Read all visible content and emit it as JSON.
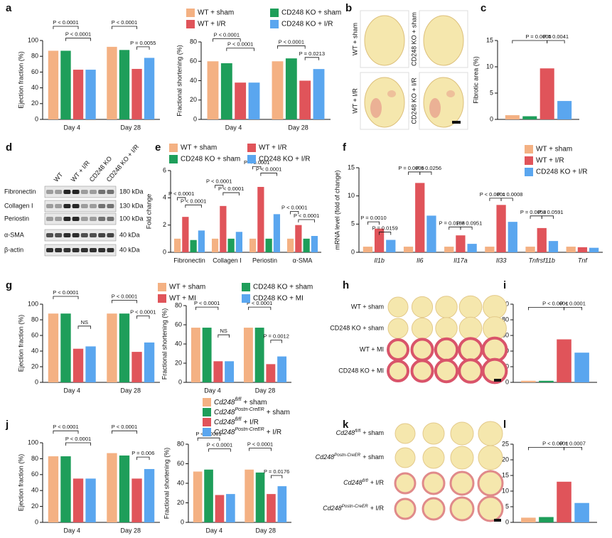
{
  "panel_letters": [
    "a",
    "b",
    "c",
    "d",
    "e",
    "f",
    "g",
    "h",
    "i",
    "j",
    "k",
    "l"
  ],
  "histology_b": [
    "WT + sham",
    "CD248 KO + sham",
    "WT + I/R",
    "CD248 KO + I/R"
  ],
  "blot_d": {
    "lanes": [
      "WT",
      "WT + I/R",
      "CD248 KO",
      "CD248 KO + I/R"
    ],
    "rows": [
      {
        "protein": "Fibronectin",
        "size": "180 kDa"
      },
      {
        "protein": "Collagen I",
        "size": "130 kDa"
      },
      {
        "protein": "Periostin",
        "size": "100 kDa"
      },
      {
        "protein": "α-SMA",
        "size": "40 kDa"
      },
      {
        "protein": "β-actin",
        "size": "40 kDa"
      }
    ]
  },
  "histology_h": [
    "WT + sham",
    "CD248 KO + sham",
    "WT + MI",
    "CD248 KO + MI"
  ],
  "histology_k": [
    [
      "Cd248",
      "fl/fl",
      "+ sham"
    ],
    [
      "Cd248",
      "Postn-CreER",
      "+ sham"
    ],
    [
      "Cd248",
      "fl/fl",
      "+ I/R"
    ],
    [
      "Cd248",
      "Postn-CreER",
      "+ I/R"
    ]
  ],
  "chart_data": [
    {
      "type": "bar",
      "ylabel": "Ejection fraction (%)",
      "categories": [
        "Day 4",
        "Day 28"
      ],
      "series": [
        {
          "color": "#f4b183",
          "values": [
            87,
            92
          ]
        },
        {
          "color": "#1e9e5a",
          "values": [
            87,
            88
          ]
        },
        {
          "color": "#e0545a",
          "values": [
            63,
            64
          ]
        },
        {
          "color": "#5aa6ef",
          "values": [
            63,
            78
          ]
        }
      ],
      "ylim": [
        0,
        100
      ],
      "yticks": [
        0,
        20,
        40,
        60,
        80,
        100
      ],
      "annotations": [
        "P < 0.0001",
        "P < 0.0001",
        "P < 0.0001",
        "P = 0.0055"
      ]
    },
    {
      "type": "bar",
      "ylabel": "Fractional shortening (%)",
      "categories": [
        "Day 4",
        "Day 28"
      ],
      "series": [
        {
          "name": "WT + sham",
          "color": "#f4b183",
          "values": [
            60,
            60
          ]
        },
        {
          "name": "CD248 KO + sham",
          "color": "#1e9e5a",
          "values": [
            58,
            63
          ]
        },
        {
          "name": "WT + I/R",
          "color": "#e0545a",
          "values": [
            38,
            40
          ]
        },
        {
          "name": "CD248 KO + I/R",
          "color": "#5aa6ef",
          "values": [
            38,
            52
          ]
        }
      ],
      "ylim": [
        0,
        80
      ],
      "yticks": [
        0,
        20,
        40,
        60,
        80
      ],
      "annotations": [
        "P < 0.0001",
        "P < 0.0001",
        "P < 0.0001",
        "P = 0.0213"
      ]
    },
    {
      "type": "bar",
      "ylabel": "Fibrotic area (%)",
      "series": [
        {
          "color": "#f4b183",
          "values": [
            0.8
          ]
        },
        {
          "color": "#1e9e5a",
          "values": [
            0.6
          ]
        },
        {
          "color": "#e0545a",
          "values": [
            9.7
          ]
        },
        {
          "color": "#5aa6ef",
          "values": [
            3.5
          ]
        }
      ],
      "ylim": [
        0,
        15
      ],
      "yticks": [
        0,
        5,
        10,
        15
      ],
      "annotations": [
        "P = 0.0005",
        "P = 0.0041"
      ]
    },
    {
      "type": "bar",
      "ylabel": "Fold change",
      "categories": [
        "Fibronectin",
        "Collagen I",
        "Periostin",
        "α-SMA"
      ],
      "series": [
        {
          "name": "WT + sham",
          "color": "#f4b183",
          "values": [
            1.0,
            1.0,
            1.0,
            1.0
          ]
        },
        {
          "name": "WT + I/R",
          "color": "#e0545a",
          "values": [
            2.6,
            3.4,
            4.8,
            2.0
          ]
        },
        {
          "name": "CD248 KO + sham",
          "color": "#1e9e5a",
          "values": [
            0.9,
            1.0,
            1.0,
            1.0
          ]
        },
        {
          "name": "CD248 KO + I/R",
          "color": "#5aa6ef",
          "values": [
            1.6,
            1.5,
            2.8,
            1.2
          ]
        }
      ],
      "ylim": [
        0,
        6
      ],
      "yticks": [
        0,
        2,
        4,
        6
      ],
      "annotations": [
        "P < 0.0001",
        "P < 0.0001",
        "P < 0.0001",
        "P < 0.0001",
        "P < 0.0001",
        "P < 0.0001",
        "P < 0.0001",
        "P < 0.0001"
      ]
    },
    {
      "type": "bar",
      "ylabel": "mRNA level (fold of change)",
      "categories": [
        "Il1b",
        "Il6",
        "Il17a",
        "Il33",
        "Tnfrsf11b",
        "Tnf"
      ],
      "italic_categories": true,
      "series": [
        {
          "name": "WT + sham",
          "color": "#f4b183",
          "values": [
            1,
            1,
            1,
            1,
            1,
            1
          ]
        },
        {
          "name": "WT + I/R",
          "color": "#e0545a",
          "values": [
            4.2,
            12.3,
            3.0,
            8.4,
            4.3,
            0.9
          ]
        },
        {
          "name": "CD248 KO + I/R",
          "color": "#5aa6ef",
          "values": [
            2.2,
            6.5,
            1.5,
            5.4,
            2.0,
            0.8
          ]
        }
      ],
      "ylim": [
        0,
        15
      ],
      "yticks": [
        0,
        5,
        10,
        15
      ],
      "annotations": [
        "P = 0.0010",
        "P = 0.0159",
        "P = 0.0005",
        "P = 0.0256",
        "P = 0.0188",
        "P = 0.0951",
        "P < 0.0001",
        "P = 0.0008",
        "P = 0.0053",
        "P = 0.0591"
      ]
    },
    {
      "type": "bar",
      "ylabel": "Ejection fraction (%)",
      "categories": [
        "Day 4",
        "Day 28"
      ],
      "series": [
        {
          "color": "#f4b183",
          "values": [
            88,
            88
          ]
        },
        {
          "color": "#1e9e5a",
          "values": [
            88,
            88
          ]
        },
        {
          "color": "#e0545a",
          "values": [
            43,
            39
          ]
        },
        {
          "color": "#5aa6ef",
          "values": [
            46,
            51
          ]
        }
      ],
      "ylim": [
        0,
        100
      ],
      "yticks": [
        0,
        20,
        40,
        60,
        80,
        100
      ],
      "annotations": [
        "P < 0.0001",
        "NS",
        "P < 0.0001",
        "P < 0.0001"
      ]
    },
    {
      "type": "bar",
      "ylabel": "Fractional shortening (%)",
      "categories": [
        "Day 4",
        "Day 28"
      ],
      "series": [
        {
          "name": "WT + sham",
          "color": "#f4b183",
          "values": [
            57,
            57
          ]
        },
        {
          "name": "CD248 KO + sham",
          "color": "#1e9e5a",
          "values": [
            57,
            57
          ]
        },
        {
          "name": "WT + MI",
          "color": "#e0545a",
          "values": [
            22,
            19
          ]
        },
        {
          "name": "CD248 KO + MI",
          "color": "#5aa6ef",
          "values": [
            22,
            27
          ]
        }
      ],
      "ylim": [
        0,
        80
      ],
      "yticks": [
        0,
        20,
        40,
        60,
        80
      ],
      "annotations": [
        "P < 0.0001",
        "NS",
        "P < 0.0001",
        "P = 0.0012"
      ]
    },
    {
      "type": "bar",
      "ylabel": "Fibrotic area (%)",
      "series": [
        {
          "color": "#f4b183",
          "values": [
            2
          ]
        },
        {
          "color": "#1e9e5a",
          "values": [
            2
          ]
        },
        {
          "color": "#e0545a",
          "values": [
            55
          ]
        },
        {
          "color": "#5aa6ef",
          "values": [
            38
          ]
        }
      ],
      "ylim": [
        0,
        100
      ],
      "yticks": [
        0,
        20,
        40,
        60,
        80,
        100
      ],
      "annotations": [
        "P < 0.0001",
        "P < 0.0001"
      ]
    },
    {
      "type": "bar",
      "ylabel": "Ejection fraction (%)",
      "categories": [
        "Day 4",
        "Day 28"
      ],
      "series": [
        {
          "color": "#f4b183",
          "values": [
            83,
            87
          ]
        },
        {
          "color": "#1e9e5a",
          "values": [
            83,
            84
          ]
        },
        {
          "color": "#e0545a",
          "values": [
            55,
            55
          ]
        },
        {
          "color": "#5aa6ef",
          "values": [
            55,
            67
          ]
        }
      ],
      "ylim": [
        0,
        100
      ],
      "yticks": [
        0,
        20,
        40,
        60,
        80,
        100
      ],
      "annotations": [
        "P < 0.0001",
        "P < 0.0001",
        "P < 0.0001",
        "P = 0.006"
      ]
    },
    {
      "type": "bar",
      "ylabel": "Fractional shortening (%)",
      "categories": [
        "Day 4",
        "Day 28"
      ],
      "series": [
        {
          "name": [
            "Cd248",
            "fl/fl",
            "+ sham"
          ],
          "color": "#f4b183",
          "values": [
            52,
            54
          ]
        },
        {
          "name": [
            "Cd248",
            "Postn-CreER",
            "+ sham"
          ],
          "color": "#1e9e5a",
          "values": [
            54,
            51
          ]
        },
        {
          "name": [
            "Cd248",
            "fl/fl",
            "+ I/R"
          ],
          "color": "#e0545a",
          "values": [
            28,
            29
          ]
        },
        {
          "name": [
            "Cd248",
            "Postn-CreER",
            "+ I/R"
          ],
          "color": "#5aa6ef",
          "values": [
            29,
            37
          ]
        }
      ],
      "ylim": [
        0,
        80
      ],
      "yticks": [
        0,
        20,
        40,
        60,
        80
      ],
      "annotations": [
        "P < 0.0001",
        "P < 0.0001",
        "P < 0.0001",
        "P = 0.0176"
      ]
    },
    {
      "type": "bar",
      "ylabel": "Fibrotic area (%)",
      "series": [
        {
          "color": "#f4b183",
          "values": [
            1.5
          ]
        },
        {
          "color": "#1e9e5a",
          "values": [
            1.7
          ]
        },
        {
          "color": "#e0545a",
          "values": [
            13
          ]
        },
        {
          "color": "#5aa6ef",
          "values": [
            6.2
          ]
        }
      ],
      "ylim": [
        0,
        25
      ],
      "yticks": [
        0,
        5,
        10,
        15,
        20,
        25
      ],
      "annotations": [
        "P < 0.0001",
        "P = 0.0007"
      ]
    }
  ]
}
